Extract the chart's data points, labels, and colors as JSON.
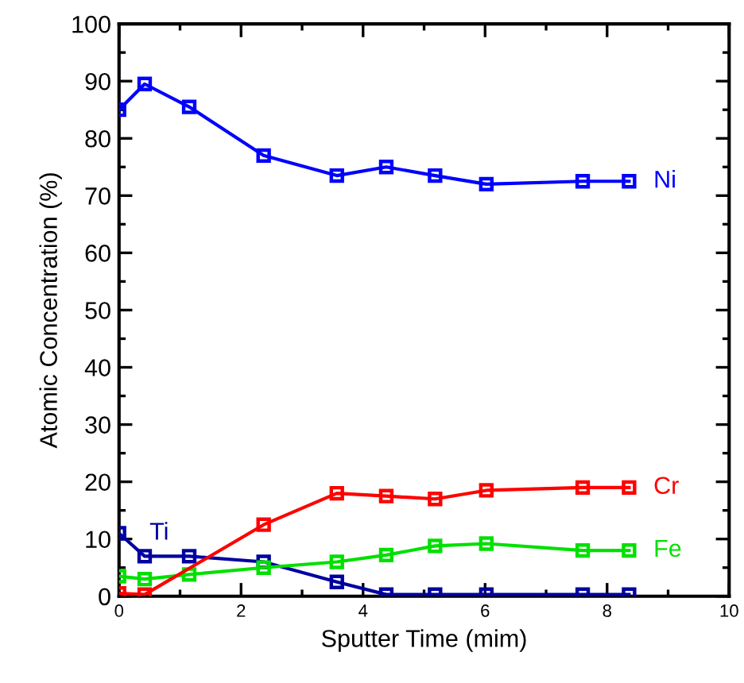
{
  "chart_data": {
    "type": "line",
    "xlabel": "Sputter Time (mim)",
    "ylabel": "Atomic Concentration (%)",
    "xlim": [
      0,
      10
    ],
    "xticks": [
      0,
      2,
      4,
      6,
      8,
      10
    ],
    "ylim": [
      0,
      100
    ],
    "yticks": [
      0,
      10,
      20,
      30,
      40,
      50,
      60,
      70,
      80,
      90,
      100
    ],
    "grid": false,
    "legend": false,
    "marker": "square",
    "line_style": "solid",
    "x": [
      0,
      0.42,
      1.15,
      2.37,
      3.57,
      4.38,
      5.18,
      6.02,
      7.6,
      8.36
    ],
    "series": [
      {
        "name": "Ni",
        "color": "#0000ff",
        "values": [
          85,
          89.5,
          85.5,
          77,
          73.5,
          75,
          73.5,
          72,
          72.5,
          72.5
        ]
      },
      {
        "name": "Cr",
        "color": "#ff0000",
        "x": [
          0,
          0.42,
          2.37,
          3.57,
          4.38,
          5.18,
          6.02,
          7.6,
          8.36
        ],
        "values": [
          0.5,
          0.3,
          12.5,
          18,
          17.5,
          17,
          18.5,
          19,
          19
        ]
      },
      {
        "name": "Fe",
        "color": "#00e000",
        "values": [
          3.5,
          3,
          3.8,
          5,
          6,
          7.2,
          8.8,
          9.2,
          8,
          8
        ]
      },
      {
        "name": "Ti",
        "color": "#0000a0",
        "values": [
          11,
          7,
          7,
          6,
          2.5,
          0.3,
          0.3,
          0.3,
          0.3,
          0.3
        ]
      }
    ]
  }
}
